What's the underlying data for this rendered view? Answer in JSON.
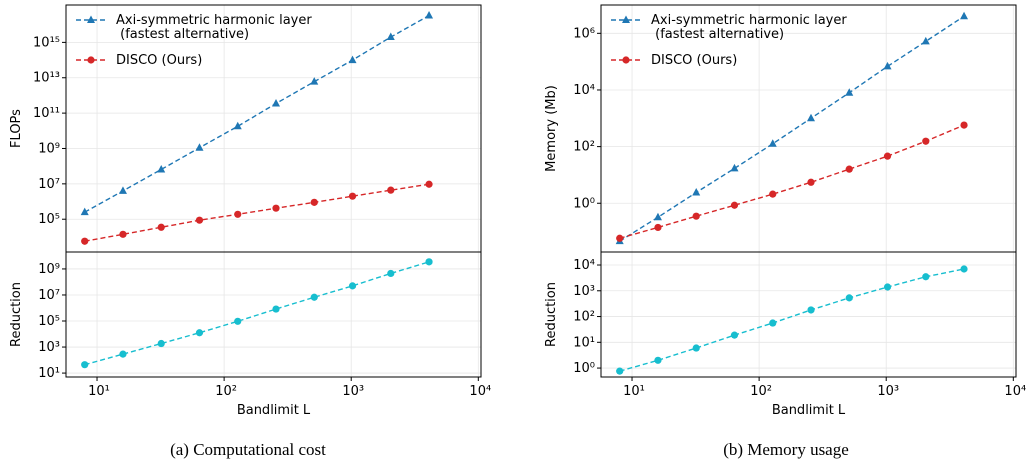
{
  "chart_data": [
    {
      "type": "line",
      "ylabel": "FLOPs",
      "xscale": "log",
      "yscale": "log",
      "grid": true,
      "legend": "upper left",
      "xlim": [
        5.7,
        10500
      ],
      "ylim": [
        1400,
        1.3e+17
      ],
      "yticks": [
        {
          "value": 100000.0,
          "label": "10⁵"
        },
        {
          "value": 10000000.0,
          "label": "10⁷"
        },
        {
          "value": 1000000000.0,
          "label": "10⁹"
        },
        {
          "value": 100000000000.0,
          "label": "10¹¹"
        },
        {
          "value": 10000000000000.0,
          "label": "10¹³"
        },
        {
          "value": 1000000000000000.0,
          "label": "10¹⁵"
        }
      ],
      "x": [
        8,
        16,
        32,
        64,
        128,
        256,
        512,
        1024,
        2048,
        4096
      ],
      "series": [
        {
          "name": "Axi-symmetric harmonic layer\n (fastest alternative)",
          "color": "#1f77b4",
          "marker": "triangle",
          "values": [
            250000,
            4000000,
            65000000,
            1100000000,
            18000000000,
            350000000000,
            6000000000000,
            100000000000000,
            2000000000000000,
            33000000000000000
          ]
        },
        {
          "name": "DISCO (Ours)",
          "color": "#d62728",
          "marker": "circle",
          "values": [
            5700,
            14000,
            35000,
            88000,
            190000,
            420000,
            900000,
            2000000,
            4400000,
            9500000
          ]
        }
      ]
    },
    {
      "type": "line",
      "ylabel": "Reduction",
      "xlabel": "Bandlimit L",
      "xscale": "log",
      "yscale": "log",
      "grid": true,
      "xlim": [
        5.7,
        10500
      ],
      "ylim": [
        5,
        20000000000
      ],
      "xticks": [
        {
          "value": 10,
          "label": "10¹"
        },
        {
          "value": 100,
          "label": "10²"
        },
        {
          "value": 1000,
          "label": "10³"
        },
        {
          "value": 10000,
          "label": "10⁴"
        }
      ],
      "yticks": [
        {
          "value": 10,
          "label": "10¹"
        },
        {
          "value": 1000,
          "label": "10³"
        },
        {
          "value": 100000,
          "label": "10⁵"
        },
        {
          "value": 10000000,
          "label": "10⁷"
        },
        {
          "value": 1000000000,
          "label": "10⁹"
        }
      ],
      "x": [
        8,
        16,
        32,
        64,
        128,
        256,
        512,
        1024,
        2048,
        4096
      ],
      "series": [
        {
          "color": "#17becf",
          "marker": "circle",
          "values": [
            44,
            286,
            1860,
            12500,
            95000,
            830000,
            6700000,
            50000000,
            450000000,
            3500000000
          ]
        }
      ]
    },
    {
      "type": "line",
      "ylabel": "Memory (Mb)",
      "xscale": "log",
      "yscale": "log",
      "grid": true,
      "legend": "upper left",
      "xlim": [
        5.7,
        10500
      ],
      "ylim": [
        0.019,
        10000000
      ],
      "yticks": [
        {
          "value": 1,
          "label": "10⁰"
        },
        {
          "value": 100,
          "label": "10²"
        },
        {
          "value": 10000,
          "label": "10⁴"
        },
        {
          "value": 1000000,
          "label": "10⁶"
        }
      ],
      "x": [
        8,
        16,
        32,
        64,
        128,
        256,
        512,
        1024,
        2048,
        4096
      ],
      "series": [
        {
          "name": "Axi-symmetric harmonic layer\n (fastest alternative)",
          "color": "#1f77b4",
          "marker": "triangle",
          "values": [
            0.046,
            0.32,
            2.4,
            17,
            126,
            1000,
            8000,
            68000,
            520000,
            4000000
          ]
        },
        {
          "name": "DISCO (Ours)",
          "color": "#d62728",
          "marker": "circle",
          "values": [
            0.058,
            0.14,
            0.35,
            0.85,
            2.1,
            5.5,
            16,
            46,
            155,
            575
          ]
        }
      ]
    },
    {
      "type": "line",
      "ylabel": "Reduction",
      "xlabel": "Bandlimit L",
      "xscale": "log",
      "yscale": "log",
      "grid": true,
      "xlim": [
        5.7,
        10500
      ],
      "ylim": [
        0.45,
        32000
      ],
      "xticks": [
        {
          "value": 10,
          "label": "10¹"
        },
        {
          "value": 100,
          "label": "10²"
        },
        {
          "value": 1000,
          "label": "10³"
        },
        {
          "value": 10000,
          "label": "10⁴"
        }
      ],
      "yticks": [
        {
          "value": 1,
          "label": "10⁰"
        },
        {
          "value": 10,
          "label": "10¹"
        },
        {
          "value": 100,
          "label": "10²"
        },
        {
          "value": 1000,
          "label": "10³"
        },
        {
          "value": 10000,
          "label": "10⁴"
        }
      ],
      "x": [
        8,
        16,
        32,
        64,
        128,
        256,
        512,
        1024,
        2048,
        4096
      ],
      "series": [
        {
          "color": "#17becf",
          "marker": "circle",
          "values": [
            0.76,
            2.0,
            6,
            19,
            56,
            180,
            530,
            1400,
            3500,
            7000
          ]
        }
      ]
    }
  ],
  "captions": [
    "(a)  Computational cost",
    "(b)  Memory usage"
  ]
}
